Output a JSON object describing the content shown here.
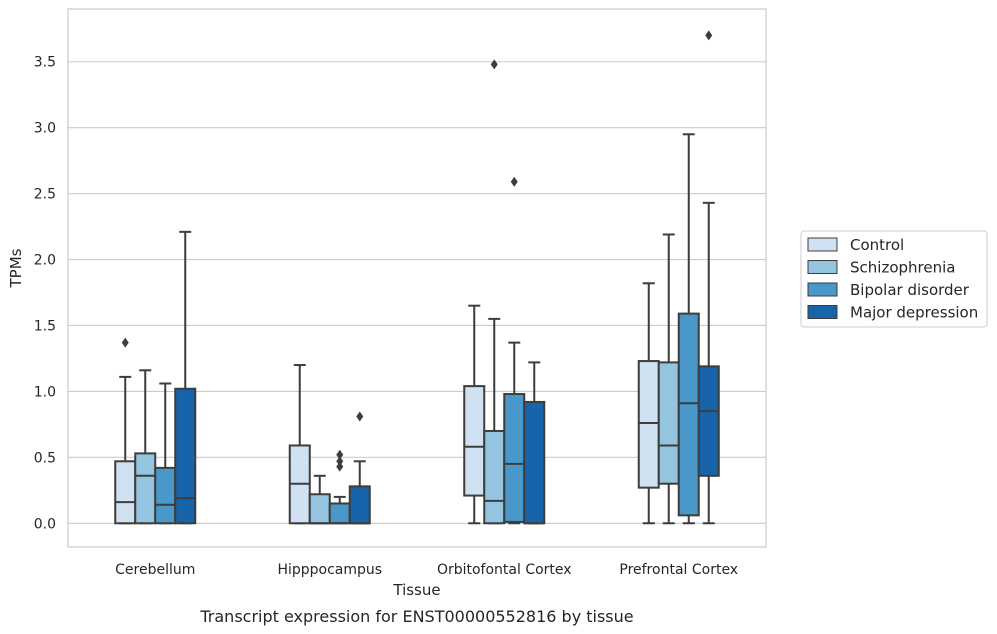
{
  "caption": "Transcript expression for ENST00000552816 by tissue",
  "chart_data": {
    "type": "box",
    "xlabel": "Tissue",
    "ylabel": "TPMs",
    "ylim": [
      -0.18,
      3.9
    ],
    "y_ticks": [
      "0.0",
      "0.5",
      "1.0",
      "1.5",
      "2.0",
      "2.5",
      "3.0",
      "3.5"
    ],
    "y_tick_values": [
      0,
      0.5,
      1.0,
      1.5,
      2.0,
      2.5,
      3.0,
      3.5
    ],
    "grid": "horizontal",
    "legend_position": "right",
    "categories": [
      "Cerebellum",
      "Hipppocampus",
      "Orbitofontal Cortex",
      "Prefrontal Cortex"
    ],
    "series": [
      {
        "name": "Control",
        "color": "#d0e1f2",
        "boxes": [
          {
            "whislo": 0,
            "q1": 0,
            "med": 0.16,
            "q3": 0.47,
            "whishi": 1.11,
            "fliers": [
              1.37
            ]
          },
          {
            "whislo": 0,
            "q1": 0,
            "med": 0.3,
            "q3": 0.59,
            "whishi": 1.2,
            "fliers": []
          },
          {
            "whislo": 0,
            "q1": 0.21,
            "med": 0.58,
            "q3": 1.04,
            "whishi": 1.65,
            "fliers": []
          },
          {
            "whislo": 0,
            "q1": 0.27,
            "med": 0.76,
            "q3": 1.23,
            "whishi": 1.82,
            "fliers": []
          }
        ]
      },
      {
        "name": "Schizophrenia",
        "color": "#94c4df",
        "boxes": [
          {
            "whislo": 0,
            "q1": 0,
            "med": 0.36,
            "q3": 0.53,
            "whishi": 1.16,
            "fliers": []
          },
          {
            "whislo": 0,
            "q1": 0,
            "med": 0.0,
            "q3": 0.22,
            "whishi": 0.36,
            "fliers": []
          },
          {
            "whislo": 0,
            "q1": 0,
            "med": 0.17,
            "q3": 0.7,
            "whishi": 1.55,
            "fliers": [
              3.48
            ]
          },
          {
            "whislo": 0,
            "q1": 0.3,
            "med": 0.59,
            "q3": 1.22,
            "whishi": 2.19,
            "fliers": []
          }
        ]
      },
      {
        "name": "Bipolar disorder",
        "color": "#4a98c9",
        "boxes": [
          {
            "whislo": 0,
            "q1": 0,
            "med": 0.14,
            "q3": 0.42,
            "whishi": 1.06,
            "fliers": []
          },
          {
            "whislo": 0,
            "q1": 0,
            "med": 0.0,
            "q3": 0.15,
            "whishi": 0.2,
            "fliers": [
              0.43,
              0.47,
              0.52
            ]
          },
          {
            "whislo": 0,
            "q1": 0.01,
            "med": 0.45,
            "q3": 0.98,
            "whishi": 1.37,
            "fliers": [
              2.59
            ]
          },
          {
            "whislo": 0,
            "q1": 0.06,
            "med": 0.91,
            "q3": 1.59,
            "whishi": 2.95,
            "fliers": []
          }
        ]
      },
      {
        "name": "Major depression",
        "color": "#1764ab",
        "boxes": [
          {
            "whislo": 0,
            "q1": 0,
            "med": 0.19,
            "q3": 1.02,
            "whishi": 2.21,
            "fliers": []
          },
          {
            "whislo": 0,
            "q1": 0,
            "med": 0.0,
            "q3": 0.28,
            "whishi": 0.47,
            "fliers": [
              0.81
            ]
          },
          {
            "whislo": 0,
            "q1": 0,
            "med": 0.0,
            "q3": 0.92,
            "whishi": 1.22,
            "fliers": []
          },
          {
            "whislo": 0,
            "q1": 0.36,
            "med": 0.85,
            "q3": 1.19,
            "whishi": 2.43,
            "fliers": [
              3.7
            ]
          }
        ]
      }
    ]
  }
}
